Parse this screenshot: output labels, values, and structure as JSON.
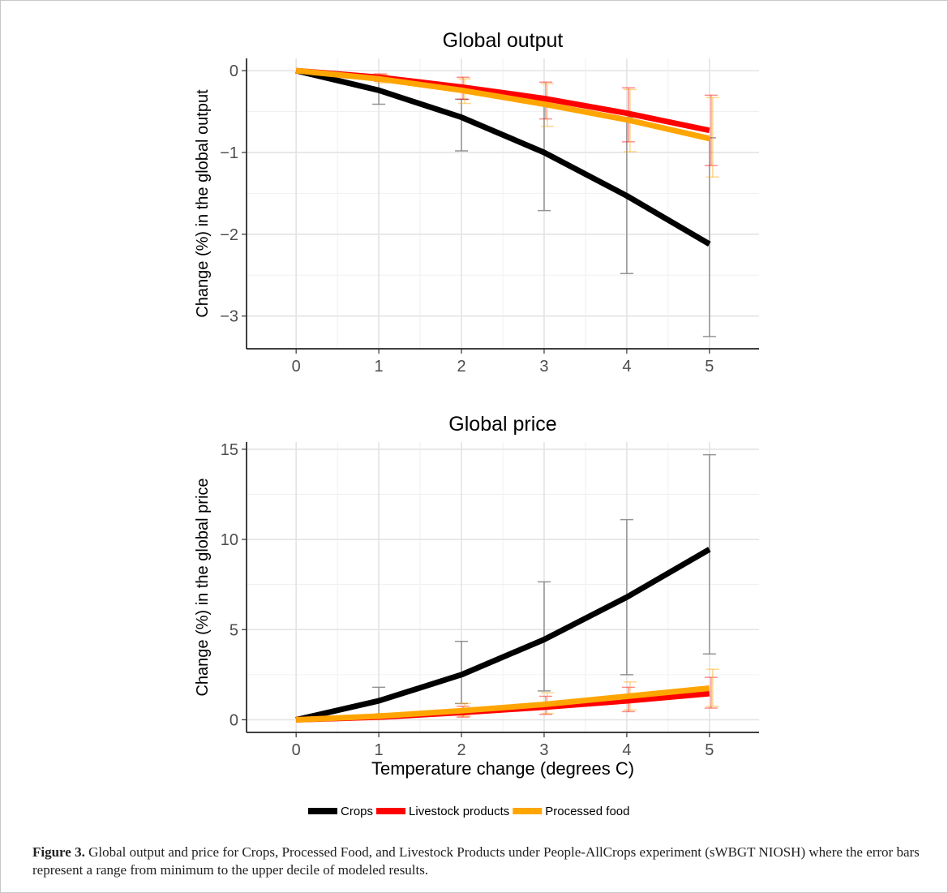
{
  "chart_data": [
    {
      "type": "line",
      "title": "Global output",
      "xlabel": "",
      "ylabel": "Change (%) in the global output",
      "x": [
        0,
        1,
        2,
        3,
        4,
        5
      ],
      "xlim": [
        -0.6,
        5.6
      ],
      "ylim": [
        -3.4,
        0.15
      ],
      "xticks": [
        0,
        1,
        2,
        3,
        4,
        5
      ],
      "yticks": [
        0,
        -1,
        -2,
        -3
      ],
      "ytick_labels": [
        "0",
        "−1",
        "−2",
        "−3"
      ],
      "grid": true,
      "series": [
        {
          "name": "Crops",
          "color": "#000000",
          "values": [
            0,
            -0.24,
            -0.57,
            -1.0,
            -1.53,
            -2.12
          ],
          "err_low": [
            0,
            -0.41,
            -0.98,
            -1.71,
            -2.48,
            -3.25
          ],
          "err_high": [
            0,
            -0.1,
            -0.35,
            -0.38,
            -0.57,
            -0.82
          ]
        },
        {
          "name": "Livestock products",
          "color": "#ff0000",
          "values": [
            0,
            -0.08,
            -0.2,
            -0.34,
            -0.52,
            -0.73
          ],
          "err_low": [
            0,
            -0.13,
            -0.35,
            -0.59,
            -0.87,
            -1.16
          ],
          "err_high": [
            0,
            -0.04,
            -0.08,
            -0.14,
            -0.21,
            -0.3
          ]
        },
        {
          "name": "Processed food",
          "color": "#ffa500",
          "values": [
            0,
            -0.1,
            -0.24,
            -0.41,
            -0.6,
            -0.83
          ],
          "err_low": [
            0,
            -0.15,
            -0.4,
            -0.68,
            -0.99,
            -1.3
          ],
          "err_high": [
            0,
            -0.05,
            -0.1,
            -0.16,
            -0.23,
            -0.33
          ]
        }
      ]
    },
    {
      "type": "line",
      "title": "Global price",
      "xlabel": "Temperature change (degrees C)",
      "ylabel": "Change (%) in the global price",
      "x": [
        0,
        1,
        2,
        3,
        4,
        5
      ],
      "xlim": [
        -0.6,
        5.6
      ],
      "ylim": [
        -0.7,
        15.4
      ],
      "xticks": [
        0,
        1,
        2,
        3,
        4,
        5
      ],
      "yticks": [
        0,
        5,
        10,
        15
      ],
      "ytick_labels": [
        "0",
        "5",
        "10",
        "15"
      ],
      "grid": true,
      "series": [
        {
          "name": "Crops",
          "color": "#000000",
          "values": [
            0,
            1.05,
            2.5,
            4.45,
            6.8,
            9.45
          ],
          "err_low": [
            0,
            0.25,
            0.9,
            1.6,
            2.5,
            3.65
          ],
          "err_high": [
            0,
            1.8,
            4.35,
            7.65,
            11.1,
            14.7
          ]
        },
        {
          "name": "Livestock products",
          "color": "#ff0000",
          "values": [
            0,
            0.15,
            0.4,
            0.7,
            1.05,
            1.45
          ],
          "err_low": [
            0,
            0.05,
            0.15,
            0.3,
            0.45,
            0.65
          ],
          "err_high": [
            0,
            0.3,
            0.75,
            1.3,
            1.8,
            2.35
          ]
        },
        {
          "name": "Processed food",
          "color": "#ffa500",
          "values": [
            0,
            0.2,
            0.5,
            0.85,
            1.3,
            1.75
          ],
          "err_low": [
            0,
            0.08,
            0.2,
            0.35,
            0.55,
            0.75
          ],
          "err_high": [
            0,
            0.35,
            0.9,
            1.5,
            2.1,
            2.8
          ]
        }
      ]
    }
  ],
  "legend": {
    "items": [
      {
        "label": "Crops",
        "color": "#000000"
      },
      {
        "label": "Livestock products",
        "color": "#ff0000"
      },
      {
        "label": "Processed food",
        "color": "#ffa500"
      }
    ]
  },
  "caption": {
    "label": "Figure 3.",
    "text": " Global output and price for Crops, Processed Food, and Livestock Products under People-AllCrops experiment (sWBGT NIOSH) where the error bars represent a range from minimum to the upper decile of modeled results."
  }
}
